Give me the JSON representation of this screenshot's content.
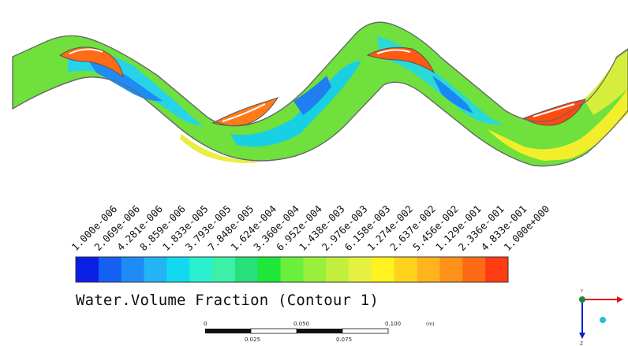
{
  "legend": {
    "title": "Water.Volume Fraction (Contour 1)",
    "labels": [
      "1.000e-006",
      "2.069e-006",
      "4.281e-006",
      "8.859e-006",
      "1.833e-005",
      "3.793e-005",
      "7.848e-005",
      "1.624e-004",
      "3.360e-004",
      "6.952e-004",
      "1.438e-003",
      "2.976e-003",
      "6.158e-003",
      "1.274e-002",
      "2.637e-002",
      "5.456e-002",
      "1.129e-001",
      "2.336e-001",
      "4.833e-001",
      "1.000e+000"
    ],
    "colors": [
      "#0a1ee6",
      "#1460f0",
      "#1f8cf5",
      "#23b4f5",
      "#13d9f0",
      "#2af0d0",
      "#3df0a8",
      "#27e07a",
      "#1ee63a",
      "#6af03a",
      "#98f03c",
      "#c2ef3e",
      "#e6f040",
      "#fff21e",
      "#ffd21e",
      "#ffb41e",
      "#ff9019",
      "#ff6a16",
      "#ff3c12"
    ]
  },
  "scale_bar": {
    "ticks": [
      "0",
      "0.050",
      "0.100",
      "0.025",
      "0.075"
    ],
    "unit": "(m)"
  },
  "triad": {
    "z_label": "Z",
    "y_label": "Y"
  }
}
